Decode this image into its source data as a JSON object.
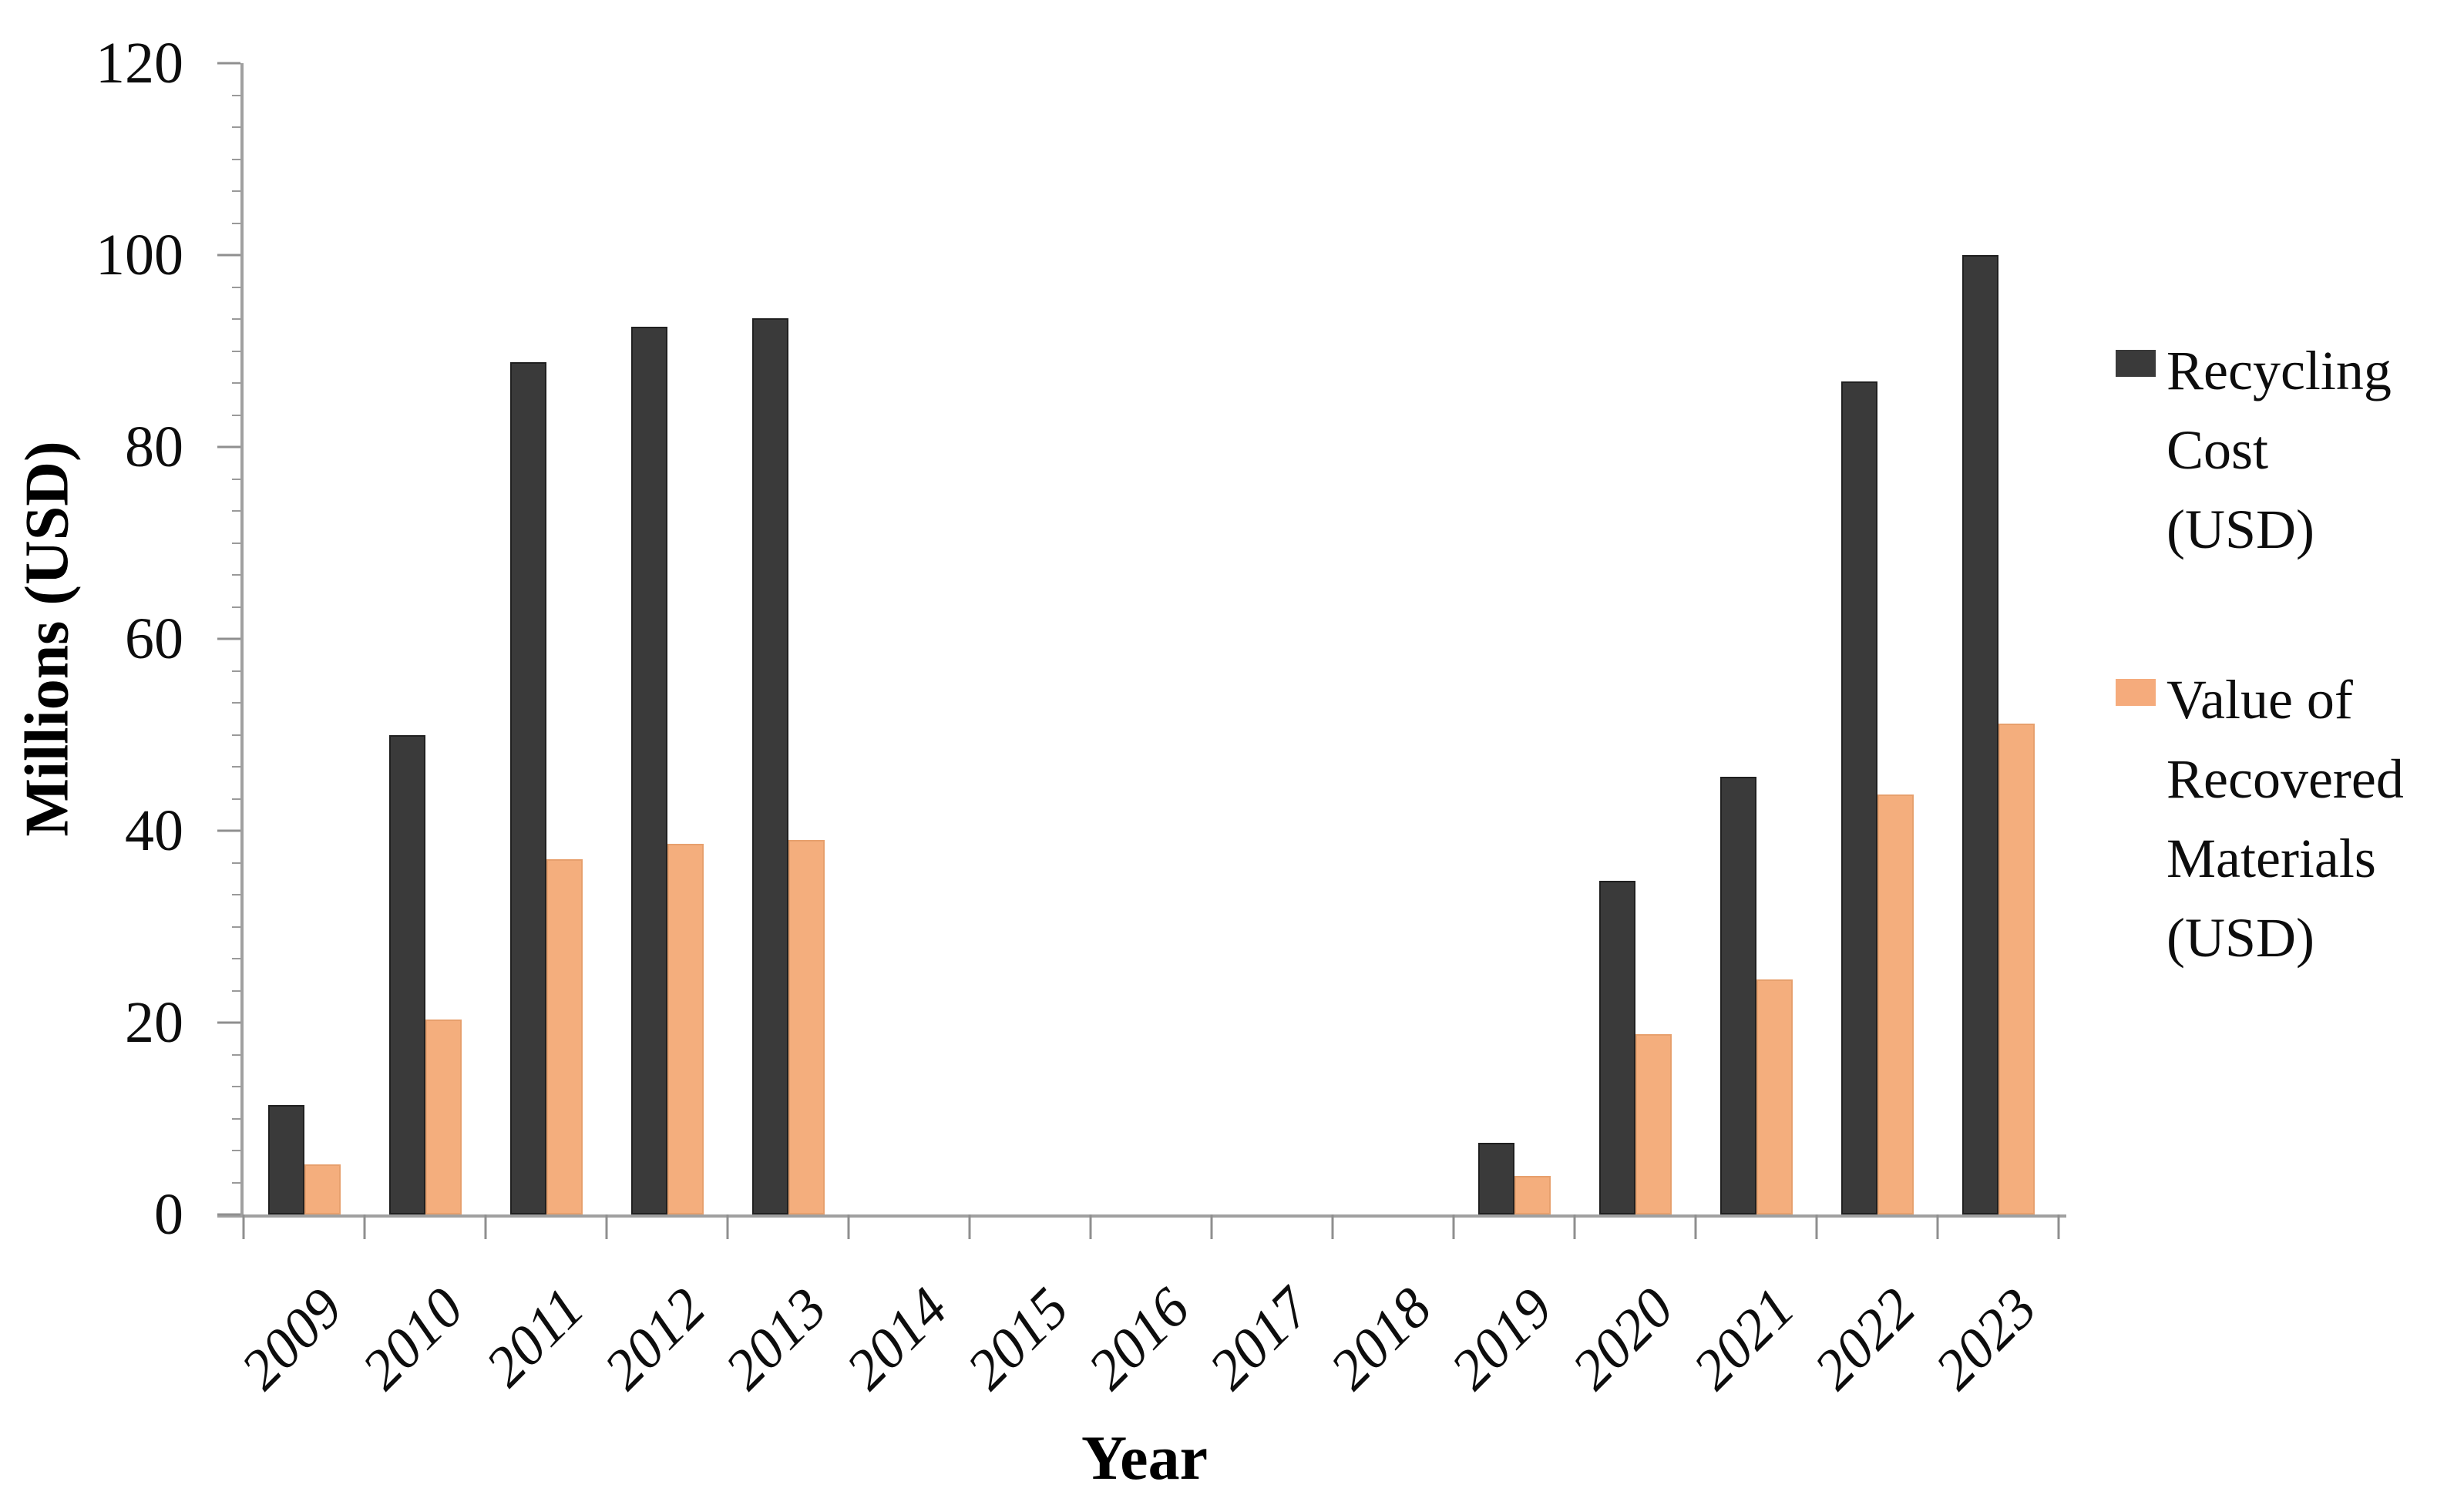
{
  "chart_data": {
    "type": "bar",
    "title": "",
    "xlabel": "Year",
    "ylabel": "Millions (USD)",
    "categories": [
      "2009",
      "2010",
      "2011",
      "2012",
      "2013",
      "2014",
      "2015",
      "2016",
      "2017",
      "2018",
      "2019",
      "2020",
      "2021",
      "2022",
      "2023"
    ],
    "series": [
      {
        "name": "Recycling Cost (USD)",
        "color": "#3a3a3a",
        "values": [
          11.4,
          50,
          88.8,
          92.5,
          93.4,
          0,
          0,
          0,
          0,
          0,
          7.5,
          34.8,
          45.6,
          86.8,
          100
        ]
      },
      {
        "name": "Value of Recovered Materials (USD)",
        "color": "#f4ae7d",
        "values": [
          5.2,
          20.3,
          37,
          38.6,
          39,
          0,
          0,
          0,
          0,
          0,
          4,
          18.8,
          24.5,
          43.8,
          51.2
        ]
      }
    ],
    "ylim": [
      0,
      120
    ],
    "ytick_step": 20,
    "ytick_labels": [
      "0",
      "20",
      "40",
      "60",
      "80",
      "100",
      "120"
    ],
    "minor_ticks_per_major": 6,
    "grid": "off",
    "legend_position": "right"
  },
  "axes": {
    "y_title": "Millions (USD)",
    "x_title": "Year",
    "axis_color": "#a0a0a0",
    "tick_color": "#8f8f8f",
    "text_color": "#0d0d0d"
  },
  "legend": {
    "items": [
      {
        "label": "Recycling Cost (USD)",
        "lines": [
          "Recycling",
          "Cost",
          "(USD)"
        ],
        "color": "#3a3a3a"
      },
      {
        "label": "Value of Recovered Materials (USD)",
        "lines": [
          "Value of",
          "Recovered",
          "Materials",
          "(USD)"
        ],
        "color": "#f5ab7c"
      }
    ]
  }
}
